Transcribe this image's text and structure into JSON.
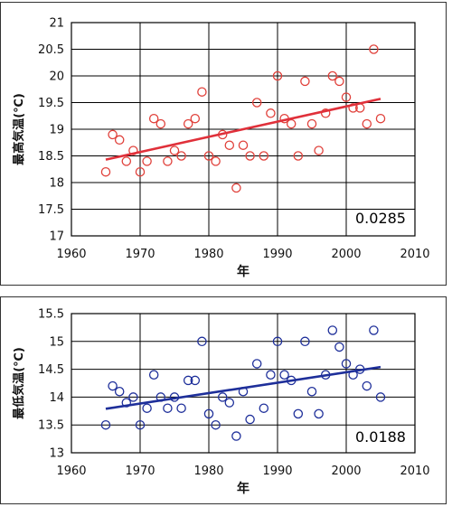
{
  "chart_data": [
    {
      "type": "scatter",
      "title": "",
      "xlabel": "年",
      "ylabel": "最高気温(℃)",
      "xlim": [
        1960,
        2010
      ],
      "ylim": [
        17,
        21
      ],
      "xticks": [
        1960,
        1970,
        1980,
        1990,
        2000,
        2010
      ],
      "yticks": [
        17,
        17.5,
        18,
        18.5,
        19,
        19.5,
        20,
        20.5,
        21
      ],
      "grid": true,
      "annotation": "0.0285",
      "colors": {
        "points": "#e0403a",
        "trend": "#e0303a"
      },
      "series": [
        {
          "x": [
            1965,
            1966,
            1967,
            1968,
            1969,
            1970,
            1971,
            1972,
            1973,
            1974,
            1975,
            1976,
            1977,
            1978,
            1979,
            1980,
            1981,
            1982,
            1983,
            1984,
            1985,
            1986,
            1987,
            1988,
            1989,
            1990,
            1991,
            1992,
            1993,
            1994,
            1995,
            1996,
            1997,
            1998,
            1999,
            2000,
            2001,
            2002,
            2003,
            2004,
            2005
          ],
          "y": [
            18.2,
            18.9,
            18.8,
            18.4,
            18.6,
            18.2,
            18.4,
            19.2,
            19.1,
            18.4,
            18.6,
            18.5,
            19.1,
            19.2,
            19.7,
            18.5,
            18.4,
            18.9,
            18.7,
            17.9,
            18.7,
            18.5,
            19.5,
            18.5,
            19.3,
            20.0,
            19.2,
            19.1,
            18.5,
            19.9,
            19.1,
            18.6,
            19.3,
            20.0,
            19.9,
            19.6,
            19.4,
            19.4,
            19.1,
            20.5,
            19.2
          ]
        }
      ],
      "trend": {
        "x": [
          1965,
          2005
        ],
        "y": [
          18.43,
          19.57
        ]
      }
    },
    {
      "type": "scatter",
      "title": "",
      "xlabel": "年",
      "ylabel": "最低気温(℃)",
      "xlim": [
        1960,
        2010
      ],
      "ylim": [
        13,
        15.5
      ],
      "xticks": [
        1960,
        1970,
        1980,
        1990,
        2000,
        2010
      ],
      "yticks": [
        13,
        13.5,
        14,
        14.5,
        15,
        15.5
      ],
      "grid": true,
      "annotation": "0.0188",
      "colors": {
        "points": "#1e2f9a",
        "trend": "#1e2f9a"
      },
      "series": [
        {
          "x": [
            1965,
            1966,
            1967,
            1968,
            1969,
            1970,
            1971,
            1972,
            1973,
            1974,
            1975,
            1976,
            1977,
            1978,
            1979,
            1980,
            1981,
            1982,
            1983,
            1984,
            1985,
            1986,
            1987,
            1988,
            1989,
            1990,
            1991,
            1992,
            1993,
            1994,
            1995,
            1996,
            1997,
            1998,
            1999,
            2000,
            2001,
            2002,
            2003,
            2004,
            2005
          ],
          "y": [
            13.5,
            14.2,
            14.1,
            13.9,
            14.0,
            13.5,
            13.8,
            14.4,
            14.0,
            13.8,
            14.0,
            13.8,
            14.3,
            14.3,
            15.0,
            13.7,
            13.5,
            14.0,
            13.9,
            13.3,
            14.1,
            13.6,
            14.6,
            13.8,
            14.4,
            15.0,
            14.4,
            14.3,
            13.7,
            15.0,
            14.1,
            13.7,
            14.4,
            15.2,
            14.9,
            14.6,
            14.4,
            14.5,
            14.2,
            15.2,
            14.0
          ]
        }
      ],
      "trend": {
        "x": [
          1965,
          2005
        ],
        "y": [
          13.79,
          14.54
        ]
      }
    }
  ]
}
